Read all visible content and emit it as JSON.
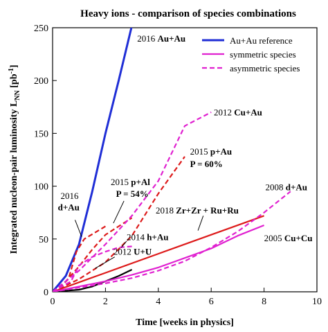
{
  "chart_data": {
    "type": "line",
    "title": "Heavy ions - comparison of species combinations",
    "xlabel": "Time [weeks in physics]",
    "ylabel": "Integrated nucleon-pair luminosity L",
    "ylabel_sub": "NN",
    "ylabel_unit_pre": " [pb",
    "ylabel_unit_sup": "-1",
    "ylabel_unit_post": "]",
    "xlim": [
      0,
      10
    ],
    "ylim": [
      0,
      250
    ],
    "xticks": [
      0,
      2,
      4,
      6,
      8,
      10
    ],
    "yticks": [
      0,
      50,
      100,
      150,
      200,
      250
    ],
    "grid": false,
    "legend_position": "top-right",
    "legend": [
      {
        "label": "Au+Au reference",
        "color": "#1f2ed6",
        "style": "solid"
      },
      {
        "label": "symmetric species",
        "color": "#e020d0",
        "style": "solid"
      },
      {
        "label": "asymmetric species",
        "color": "#e020d0",
        "style": "dashed"
      }
    ],
    "series": [
      {
        "name": "2016 Au+Au",
        "color": "#1f2ed6",
        "style": "solid",
        "points": [
          [
            0,
            0
          ],
          [
            0.5,
            15
          ],
          [
            1,
            45
          ],
          [
            1.5,
            95
          ],
          [
            2,
            150
          ],
          [
            2.5,
            200
          ],
          [
            3,
            252
          ]
        ]
      },
      {
        "name": "2012 U+U",
        "color": "#000000",
        "style": "solid",
        "points": [
          [
            0,
            0
          ],
          [
            1,
            2
          ],
          [
            1.5,
            5
          ],
          [
            2,
            10
          ],
          [
            2.5,
            15
          ],
          [
            3,
            21
          ]
        ]
      },
      {
        "name": "2018 Zr+Zr + Ru+Ru",
        "color": "#dd1a1a",
        "style": "solid",
        "points": [
          [
            0,
            0
          ],
          [
            1,
            9
          ],
          [
            2,
            18
          ],
          [
            4,
            36
          ],
          [
            6,
            54
          ],
          [
            8,
            72
          ]
        ]
      },
      {
        "name": "2005 Cu+Cu",
        "color": "#e020d0",
        "style": "solid",
        "points": [
          [
            0,
            0
          ],
          [
            1,
            5
          ],
          [
            2,
            10
          ],
          [
            3,
            16
          ],
          [
            4,
            23
          ],
          [
            5,
            32
          ],
          [
            6,
            41
          ],
          [
            7,
            53
          ],
          [
            8,
            63
          ]
        ]
      },
      {
        "name": "2016 d+Au",
        "color": "#dd1a1a",
        "style": "dashed",
        "points": [
          [
            0,
            0
          ],
          [
            0.3,
            5
          ],
          [
            0.6,
            12
          ],
          [
            0.9,
            38
          ],
          [
            1.2,
            50
          ],
          [
            1.6,
            56
          ],
          [
            2,
            62
          ]
        ]
      },
      {
        "name": "2015 p+Al",
        "color": "#dd1a1a",
        "style": "dashed",
        "points": [
          [
            0,
            0
          ],
          [
            0.5,
            10
          ],
          [
            1,
            24
          ],
          [
            1.5,
            40
          ],
          [
            2,
            54
          ],
          [
            2.5,
            62
          ],
          [
            3,
            70
          ]
        ]
      },
      {
        "name": "2015 p+Au",
        "color": "#dd1a1a",
        "style": "dashed",
        "points": [
          [
            0,
            0
          ],
          [
            1,
            12
          ],
          [
            2,
            28
          ],
          [
            3,
            53
          ],
          [
            4,
            93
          ],
          [
            5,
            128
          ]
        ]
      },
      {
        "name": "2012 Cu+Au",
        "color": "#e020d0",
        "style": "dashed",
        "points": [
          [
            0,
            0
          ],
          [
            1,
            20
          ],
          [
            2,
            45
          ],
          [
            3,
            72
          ],
          [
            4,
            105
          ],
          [
            5,
            157
          ],
          [
            6,
            170
          ]
        ]
      },
      {
        "name": "2014 h+Au",
        "color": "#e020d0",
        "style": "dashed",
        "points": [
          [
            0,
            0
          ],
          [
            0.7,
            10
          ],
          [
            1,
            25
          ],
          [
            1.5,
            33
          ],
          [
            2,
            38
          ],
          [
            2.5,
            42
          ],
          [
            3,
            43
          ]
        ]
      },
      {
        "name": "2008 d+Au",
        "color": "#e020d0",
        "style": "dashed",
        "points": [
          [
            0,
            0
          ],
          [
            1,
            4
          ],
          [
            2,
            8
          ],
          [
            3,
            13
          ],
          [
            4,
            20
          ],
          [
            5,
            29
          ],
          [
            6,
            42
          ],
          [
            7,
            57
          ],
          [
            8,
            75
          ],
          [
            9,
            95
          ]
        ]
      }
    ],
    "annotations": [
      {
        "text": "2016 ",
        "bold_text": "Au+Au",
        "x": 3.2,
        "y": 237
      },
      {
        "text": "2012 ",
        "bold_text": "Cu+Au",
        "x": 6.1,
        "y": 167
      },
      {
        "text": "2015 ",
        "bold_text": "p+Au",
        "x": 5.2,
        "y": 130
      },
      {
        "text": "",
        "bold_text": "P = 60%",
        "x": 5.2,
        "y": 118
      },
      {
        "text": "2015 ",
        "bold_text": "p+Al",
        "x": 2.2,
        "y": 101
      },
      {
        "text": "",
        "bold_text": "P = 54%",
        "x": 2.4,
        "y": 90
      },
      {
        "text": "2016",
        "bold_text": "",
        "x": 0.3,
        "y": 88
      },
      {
        "text": "",
        "bold_text": "d+Au",
        "x": 0.2,
        "y": 77
      },
      {
        "text": "2008 ",
        "bold_text": "d+Au",
        "x": 8.05,
        "y": 96
      },
      {
        "text": "2018 ",
        "bold_text": "Zr+Zr + Ru+Ru",
        "x": 3.9,
        "y": 74
      },
      {
        "text": "2014 ",
        "bold_text": "h+Au",
        "x": 2.8,
        "y": 49
      },
      {
        "text": "2005 ",
        "bold_text": "Cu+Cu",
        "x": 8.0,
        "y": 48
      },
      {
        "text": "2012 ",
        "bold_text": "U+U",
        "x": 2.3,
        "y": 35
      }
    ]
  }
}
